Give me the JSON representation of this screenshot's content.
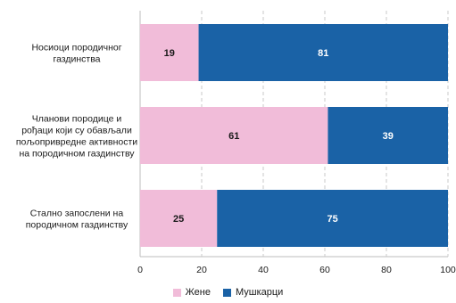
{
  "chart_data": {
    "type": "bar",
    "orientation": "horizontal",
    "stacked": true,
    "categories": [
      [
        "Носиоци породичног",
        "газдинства"
      ],
      [
        "Чланови породице и",
        "рођаци који су обављали",
        "пољопривредне активности",
        "на породичном газдинству"
      ],
      [
        "Стално запослени на",
        "породичном газдинству"
      ]
    ],
    "series": [
      {
        "name": "Жене",
        "values": [
          19,
          61,
          25
        ],
        "color": "#f1bcd9"
      },
      {
        "name": "Мушкарци",
        "values": [
          81,
          39,
          75
        ],
        "color": "#1a62a6"
      }
    ],
    "x_ticks": [
      0,
      20,
      40,
      60,
      80,
      100
    ],
    "xlim": [
      0,
      100
    ],
    "grid": "vertical dashed",
    "legend": "bottom-center"
  }
}
